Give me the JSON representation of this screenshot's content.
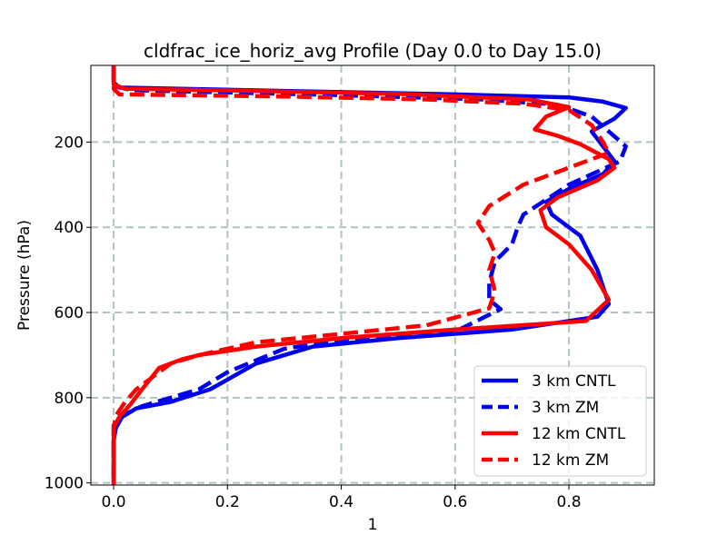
{
  "chart_data": {
    "type": "line",
    "title": "cldfrac_ice_horiz_avg Profile (Day 0.0 to Day 15.0)",
    "xlabel": "1",
    "ylabel": "Pressure (hPa)",
    "xlim": [
      -0.04,
      0.95
    ],
    "ylim": [
      1005,
      20
    ],
    "y_inverted": true,
    "grid": true,
    "legend_position": "lower-right",
    "x_ticks": [
      0.0,
      0.2,
      0.4,
      0.6,
      0.8
    ],
    "x_tick_labels": [
      "0.0",
      "0.2",
      "0.4",
      "0.6",
      "0.8"
    ],
    "y_ticks": [
      200,
      400,
      600,
      800,
      1000
    ],
    "y_tick_labels": [
      "200",
      "400",
      "600",
      "800",
      "1000"
    ],
    "series": [
      {
        "name": "3 km CNTL",
        "color": "#0000ee",
        "dash": "solid",
        "points": [
          [
            0.0,
            20
          ],
          [
            0.0,
            60
          ],
          [
            0.01,
            72
          ],
          [
            0.3,
            80
          ],
          [
            0.6,
            88
          ],
          [
            0.8,
            95
          ],
          [
            0.86,
            105
          ],
          [
            0.9,
            120
          ],
          [
            0.88,
            145
          ],
          [
            0.84,
            175
          ],
          [
            0.86,
            210
          ],
          [
            0.88,
            245
          ],
          [
            0.86,
            275
          ],
          [
            0.8,
            310
          ],
          [
            0.76,
            340
          ],
          [
            0.77,
            370
          ],
          [
            0.82,
            420
          ],
          [
            0.85,
            500
          ],
          [
            0.87,
            580
          ],
          [
            0.85,
            610
          ],
          [
            0.7,
            640
          ],
          [
            0.5,
            660
          ],
          [
            0.35,
            680
          ],
          [
            0.25,
            720
          ],
          [
            0.17,
            780
          ],
          [
            0.1,
            810
          ],
          [
            0.04,
            825
          ],
          [
            0.015,
            845
          ],
          [
            0.004,
            870
          ],
          [
            0.0,
            900
          ],
          [
            0.0,
            1005
          ]
        ]
      },
      {
        "name": "3 km ZM",
        "color": "#0000ee",
        "dash": "dashed",
        "points": [
          [
            0.0,
            20
          ],
          [
            0.0,
            68
          ],
          [
            0.03,
            78
          ],
          [
            0.4,
            90
          ],
          [
            0.65,
            100
          ],
          [
            0.78,
            112
          ],
          [
            0.84,
            140
          ],
          [
            0.87,
            175
          ],
          [
            0.9,
            210
          ],
          [
            0.89,
            245
          ],
          [
            0.8,
            300
          ],
          [
            0.72,
            370
          ],
          [
            0.71,
            400
          ],
          [
            0.7,
            440
          ],
          [
            0.67,
            480
          ],
          [
            0.66,
            530
          ],
          [
            0.66,
            570
          ],
          [
            0.68,
            592
          ],
          [
            0.6,
            645
          ],
          [
            0.4,
            665
          ],
          [
            0.3,
            685
          ],
          [
            0.2,
            740
          ],
          [
            0.15,
            780
          ],
          [
            0.05,
            820
          ],
          [
            0.01,
            845
          ],
          [
            0.0,
            865
          ],
          [
            0.0,
            1005
          ]
        ]
      },
      {
        "name": "12 km CNTL",
        "color": "#ff0000",
        "dash": "solid",
        "points": [
          [
            0.0,
            20
          ],
          [
            0.0,
            65
          ],
          [
            0.02,
            75
          ],
          [
            0.25,
            80
          ],
          [
            0.5,
            87
          ],
          [
            0.73,
            100
          ],
          [
            0.8,
            118
          ],
          [
            0.76,
            140
          ],
          [
            0.74,
            170
          ],
          [
            0.78,
            185
          ],
          [
            0.82,
            205
          ],
          [
            0.87,
            240
          ],
          [
            0.88,
            260
          ],
          [
            0.85,
            290
          ],
          [
            0.78,
            330
          ],
          [
            0.75,
            360
          ],
          [
            0.76,
            400
          ],
          [
            0.8,
            440
          ],
          [
            0.84,
            500
          ],
          [
            0.87,
            570
          ],
          [
            0.83,
            620
          ],
          [
            0.6,
            640
          ],
          [
            0.4,
            660
          ],
          [
            0.25,
            680
          ],
          [
            0.15,
            700
          ],
          [
            0.12,
            710
          ],
          [
            0.08,
            730
          ],
          [
            0.05,
            780
          ],
          [
            0.03,
            815
          ],
          [
            0.01,
            845
          ],
          [
            0.0,
            870
          ],
          [
            0.0,
            1005
          ]
        ]
      },
      {
        "name": "12 km ZM",
        "color": "#ff0000",
        "dash": "dashed",
        "points": [
          [
            0.0,
            20
          ],
          [
            0.0,
            75
          ],
          [
            0.01,
            88
          ],
          [
            0.3,
            93
          ],
          [
            0.55,
            100
          ],
          [
            0.72,
            110
          ],
          [
            0.8,
            125
          ],
          [
            0.84,
            160
          ],
          [
            0.86,
            200
          ],
          [
            0.87,
            225
          ],
          [
            0.8,
            260
          ],
          [
            0.72,
            300
          ],
          [
            0.66,
            350
          ],
          [
            0.64,
            390
          ],
          [
            0.66,
            430
          ],
          [
            0.67,
            460
          ],
          [
            0.66,
            500
          ],
          [
            0.67,
            550
          ],
          [
            0.66,
            590
          ],
          [
            0.55,
            630
          ],
          [
            0.4,
            650
          ],
          [
            0.25,
            670
          ],
          [
            0.15,
            700
          ],
          [
            0.1,
            720
          ],
          [
            0.08,
            740
          ],
          [
            0.04,
            780
          ],
          [
            0.02,
            810
          ],
          [
            0.005,
            840
          ],
          [
            0.0,
            870
          ],
          [
            0.0,
            1005
          ]
        ]
      }
    ]
  }
}
